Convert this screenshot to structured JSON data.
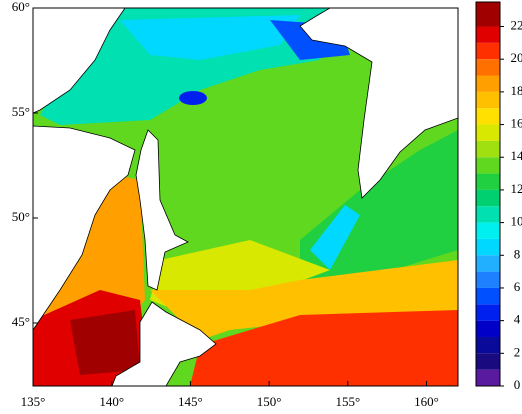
{
  "chart_data": {
    "type": "map",
    "xlim": [
      135,
      162
    ],
    "ylim": [
      42,
      60
    ],
    "xticks": [
      {
        "value": 135,
        "label": "135°"
      },
      {
        "value": 140,
        "label": "140°"
      },
      {
        "value": 145,
        "label": "145°"
      },
      {
        "value": 150,
        "label": "150°"
      },
      {
        "value": 155,
        "label": "155°"
      },
      {
        "value": 160,
        "label": "160°"
      }
    ],
    "yticks": [
      {
        "value": 45,
        "label": "45°"
      },
      {
        "value": 50,
        "label": "50°"
      },
      {
        "value": 55,
        "label": "55°"
      },
      {
        "value": 60,
        "label": "60°"
      }
    ],
    "colorbar": {
      "lim": [
        0,
        23.5
      ],
      "ticks": [
        0,
        2,
        4,
        6,
        8,
        10,
        12,
        14,
        16,
        18,
        20,
        22
      ],
      "levels": [
        0,
        1,
        2,
        3,
        4,
        5,
        6,
        7,
        8,
        9,
        10,
        11,
        12,
        13,
        14,
        15,
        16,
        17,
        18,
        19,
        20,
        21,
        22
      ],
      "colors": [
        "#5a1aa0",
        "#1a0a80",
        "#0a0a9a",
        "#0000c8",
        "#0020f0",
        "#0050ff",
        "#1e80ff",
        "#20b0ff",
        "#00d8ff",
        "#00f0f0",
        "#00e0b0",
        "#00d070",
        "#20d040",
        "#60d820",
        "#a0e010",
        "#d8e800",
        "#ffe000",
        "#ffc000",
        "#ffa000",
        "#ff7000",
        "#ff3000",
        "#e00000",
        "#a00000"
      ]
    }
  }
}
